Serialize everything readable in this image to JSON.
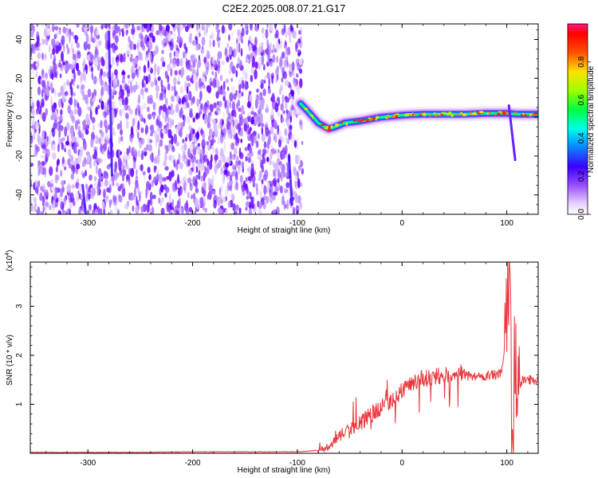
{
  "title": "C2E2.2025.008.07.21.G17",
  "chart_data": [
    {
      "type": "heatmap",
      "xlabel": "Height of straight line (km)",
      "ylabel": "Frequency (Hz)",
      "xlim": [
        -355,
        130
      ],
      "ylim": [
        -50,
        48
      ],
      "xticks": [
        -300,
        -200,
        -100,
        0,
        100
      ],
      "xtick_labels": [
        "-300",
        "-200",
        "-100",
        "0",
        "100"
      ],
      "yticks": [
        -40,
        -20,
        0,
        20,
        40
      ],
      "ytick_labels": [
        "-40",
        "-20",
        "0",
        "20",
        "40"
      ],
      "colorbar": {
        "label": "Normalized spectral amplitude",
        "range": [
          0,
          1
        ],
        "ticks": [
          0.0,
          0.2,
          0.4,
          0.6,
          0.8
        ],
        "tick_labels": [
          "0.0",
          "0.2",
          "0.4",
          "0.6",
          "0.8"
        ]
      },
      "ridge": {
        "x": [
          -97,
          -90,
          -80,
          -70,
          -64,
          -55,
          -40,
          -20,
          0,
          20,
          40,
          60,
          80,
          100,
          110,
          130
        ],
        "frequency": [
          7,
          3,
          -3,
          -6,
          -5,
          -3,
          -2,
          0,
          1,
          1.5,
          1.5,
          1.5,
          2,
          2,
          1.5,
          1.5
        ]
      },
      "grid": false,
      "legend": "none"
    },
    {
      "type": "line",
      "xlabel": "Height of straight line (km)",
      "ylabel": "SNR (10 * v/v)",
      "scale_note": "(x10",
      "scale_exp": "4",
      "xlim": [
        -355,
        130
      ],
      "ylim": [
        0,
        3.9
      ],
      "xticks": [
        -300,
        -200,
        -100,
        0,
        100
      ],
      "xtick_labels": [
        "-300",
        "-200",
        "-100",
        "0",
        "100"
      ],
      "yticks": [
        1,
        2,
        3
      ],
      "ytick_labels": [
        "1",
        "2",
        "3"
      ],
      "series": [
        {
          "color": "#e8383d",
          "x": [
            -355,
            -300,
            -250,
            -200,
            -150,
            -100,
            -80,
            -70,
            -60,
            -50,
            -40,
            -30,
            -20,
            -10,
            0,
            10,
            20,
            30,
            40,
            50,
            60,
            70,
            80,
            90,
            95,
            100,
            103,
            105,
            108,
            110,
            115,
            120,
            130
          ],
          "y": [
            0.02,
            0.02,
            0.02,
            0.03,
            0.03,
            0.03,
            0.06,
            0.15,
            0.35,
            0.5,
            0.62,
            0.78,
            0.92,
            1.05,
            1.3,
            1.45,
            1.52,
            1.57,
            1.58,
            1.6,
            1.58,
            1.57,
            1.58,
            1.6,
            1.62,
            2.6,
            3.8,
            0.1,
            2.3,
            1.3,
            1.5,
            1.5,
            1.5
          ]
        }
      ],
      "grid": false,
      "legend": "none"
    }
  ]
}
